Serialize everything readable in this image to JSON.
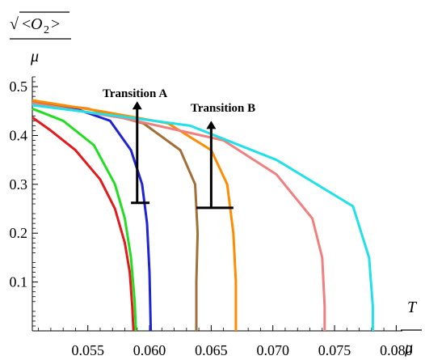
{
  "chart_data": {
    "type": "line",
    "xlabel": "T / μ",
    "ylabel": "√<O₂> / μ",
    "ylabel_parts": {
      "radical": "√",
      "lt": "<",
      "O": "O",
      "sub": "2",
      "gt": ">",
      "mu": "μ"
    },
    "xlabel_parts": {
      "T": "T",
      "mu": "μ"
    },
    "xlim": [
      0.0505,
      0.0805
    ],
    "ylim": [
      0,
      0.52
    ],
    "x_ticks": [
      0.055,
      0.06,
      0.065,
      0.07,
      0.075,
      0.08
    ],
    "x_tick_labels": [
      "0.055",
      "0.060",
      "0.065",
      "0.070",
      "0.075",
      "0.080"
    ],
    "y_ticks": [
      0.1,
      0.2,
      0.3,
      0.4,
      0.5
    ],
    "y_tick_labels": [
      "0.1",
      "0.2",
      "0.3",
      "0.4",
      "0.5"
    ],
    "grid": false,
    "legend": "none",
    "series": [
      {
        "color": "#e31a1c",
        "points": [
          [
            0.0505,
            0.437
          ],
          [
            0.052,
            0.41
          ],
          [
            0.054,
            0.37
          ],
          [
            0.056,
            0.31
          ],
          [
            0.0572,
            0.25
          ],
          [
            0.058,
            0.18
          ],
          [
            0.0584,
            0.12
          ],
          [
            0.0586,
            0.05
          ],
          [
            0.0587,
            0.0
          ]
        ]
      },
      {
        "color": "#22dd22",
        "points": [
          [
            0.0505,
            0.455
          ],
          [
            0.053,
            0.43
          ],
          [
            0.0555,
            0.38
          ],
          [
            0.0572,
            0.3
          ],
          [
            0.058,
            0.23
          ],
          [
            0.0585,
            0.15
          ],
          [
            0.0588,
            0.06
          ],
          [
            0.0589,
            0.0
          ]
        ]
      },
      {
        "color": "#1e24d6",
        "points": [
          [
            0.0505,
            0.463
          ],
          [
            0.054,
            0.455
          ],
          [
            0.0568,
            0.43
          ],
          [
            0.0585,
            0.37
          ],
          [
            0.0594,
            0.3
          ],
          [
            0.0598,
            0.22
          ],
          [
            0.06,
            0.12
          ],
          [
            0.0601,
            0.0
          ]
        ]
      },
      {
        "color": "#a0703a",
        "points": [
          [
            0.0505,
            0.468
          ],
          [
            0.055,
            0.455
          ],
          [
            0.0595,
            0.425
          ],
          [
            0.0625,
            0.37
          ],
          [
            0.0637,
            0.3
          ],
          [
            0.0639,
            0.2
          ],
          [
            0.0638,
            0.1
          ],
          [
            0.0638,
            0.0
          ]
        ]
      },
      {
        "color": "#ff8c00",
        "points": [
          [
            0.0505,
            0.472
          ],
          [
            0.056,
            0.45
          ],
          [
            0.0615,
            0.425
          ],
          [
            0.065,
            0.37
          ],
          [
            0.0663,
            0.3
          ],
          [
            0.0668,
            0.2
          ],
          [
            0.067,
            0.1
          ],
          [
            0.067,
            0.0
          ]
        ]
      },
      {
        "color": "#f08080",
        "points": [
          [
            0.0505,
            0.466
          ],
          [
            0.058,
            0.435
          ],
          [
            0.066,
            0.39
          ],
          [
            0.0703,
            0.32
          ],
          [
            0.0732,
            0.23
          ],
          [
            0.074,
            0.15
          ],
          [
            0.0742,
            0.05
          ],
          [
            0.0742,
            0.0
          ]
        ]
      },
      {
        "color": "#22e0e8",
        "points": [
          [
            0.0505,
            0.462
          ],
          [
            0.058,
            0.438
          ],
          [
            0.0633,
            0.42
          ],
          [
            0.0703,
            0.35
          ],
          [
            0.0765,
            0.255
          ],
          [
            0.0778,
            0.15
          ],
          [
            0.0781,
            0.05
          ],
          [
            0.0781,
            0.0
          ]
        ]
      }
    ],
    "annotations": [
      {
        "text": "Transition A",
        "arrow_x": 0.059,
        "arrow_y0": 0.26,
        "arrow_y1": 0.47,
        "bar_x0": 0.0585,
        "bar_x1": 0.06,
        "bar_y": 0.262
      },
      {
        "text": "Transition B",
        "arrow_x": 0.065,
        "arrow_y0": 0.25,
        "arrow_y1": 0.43,
        "bar_x0": 0.0638,
        "bar_x1": 0.0668,
        "bar_y": 0.252
      }
    ]
  }
}
